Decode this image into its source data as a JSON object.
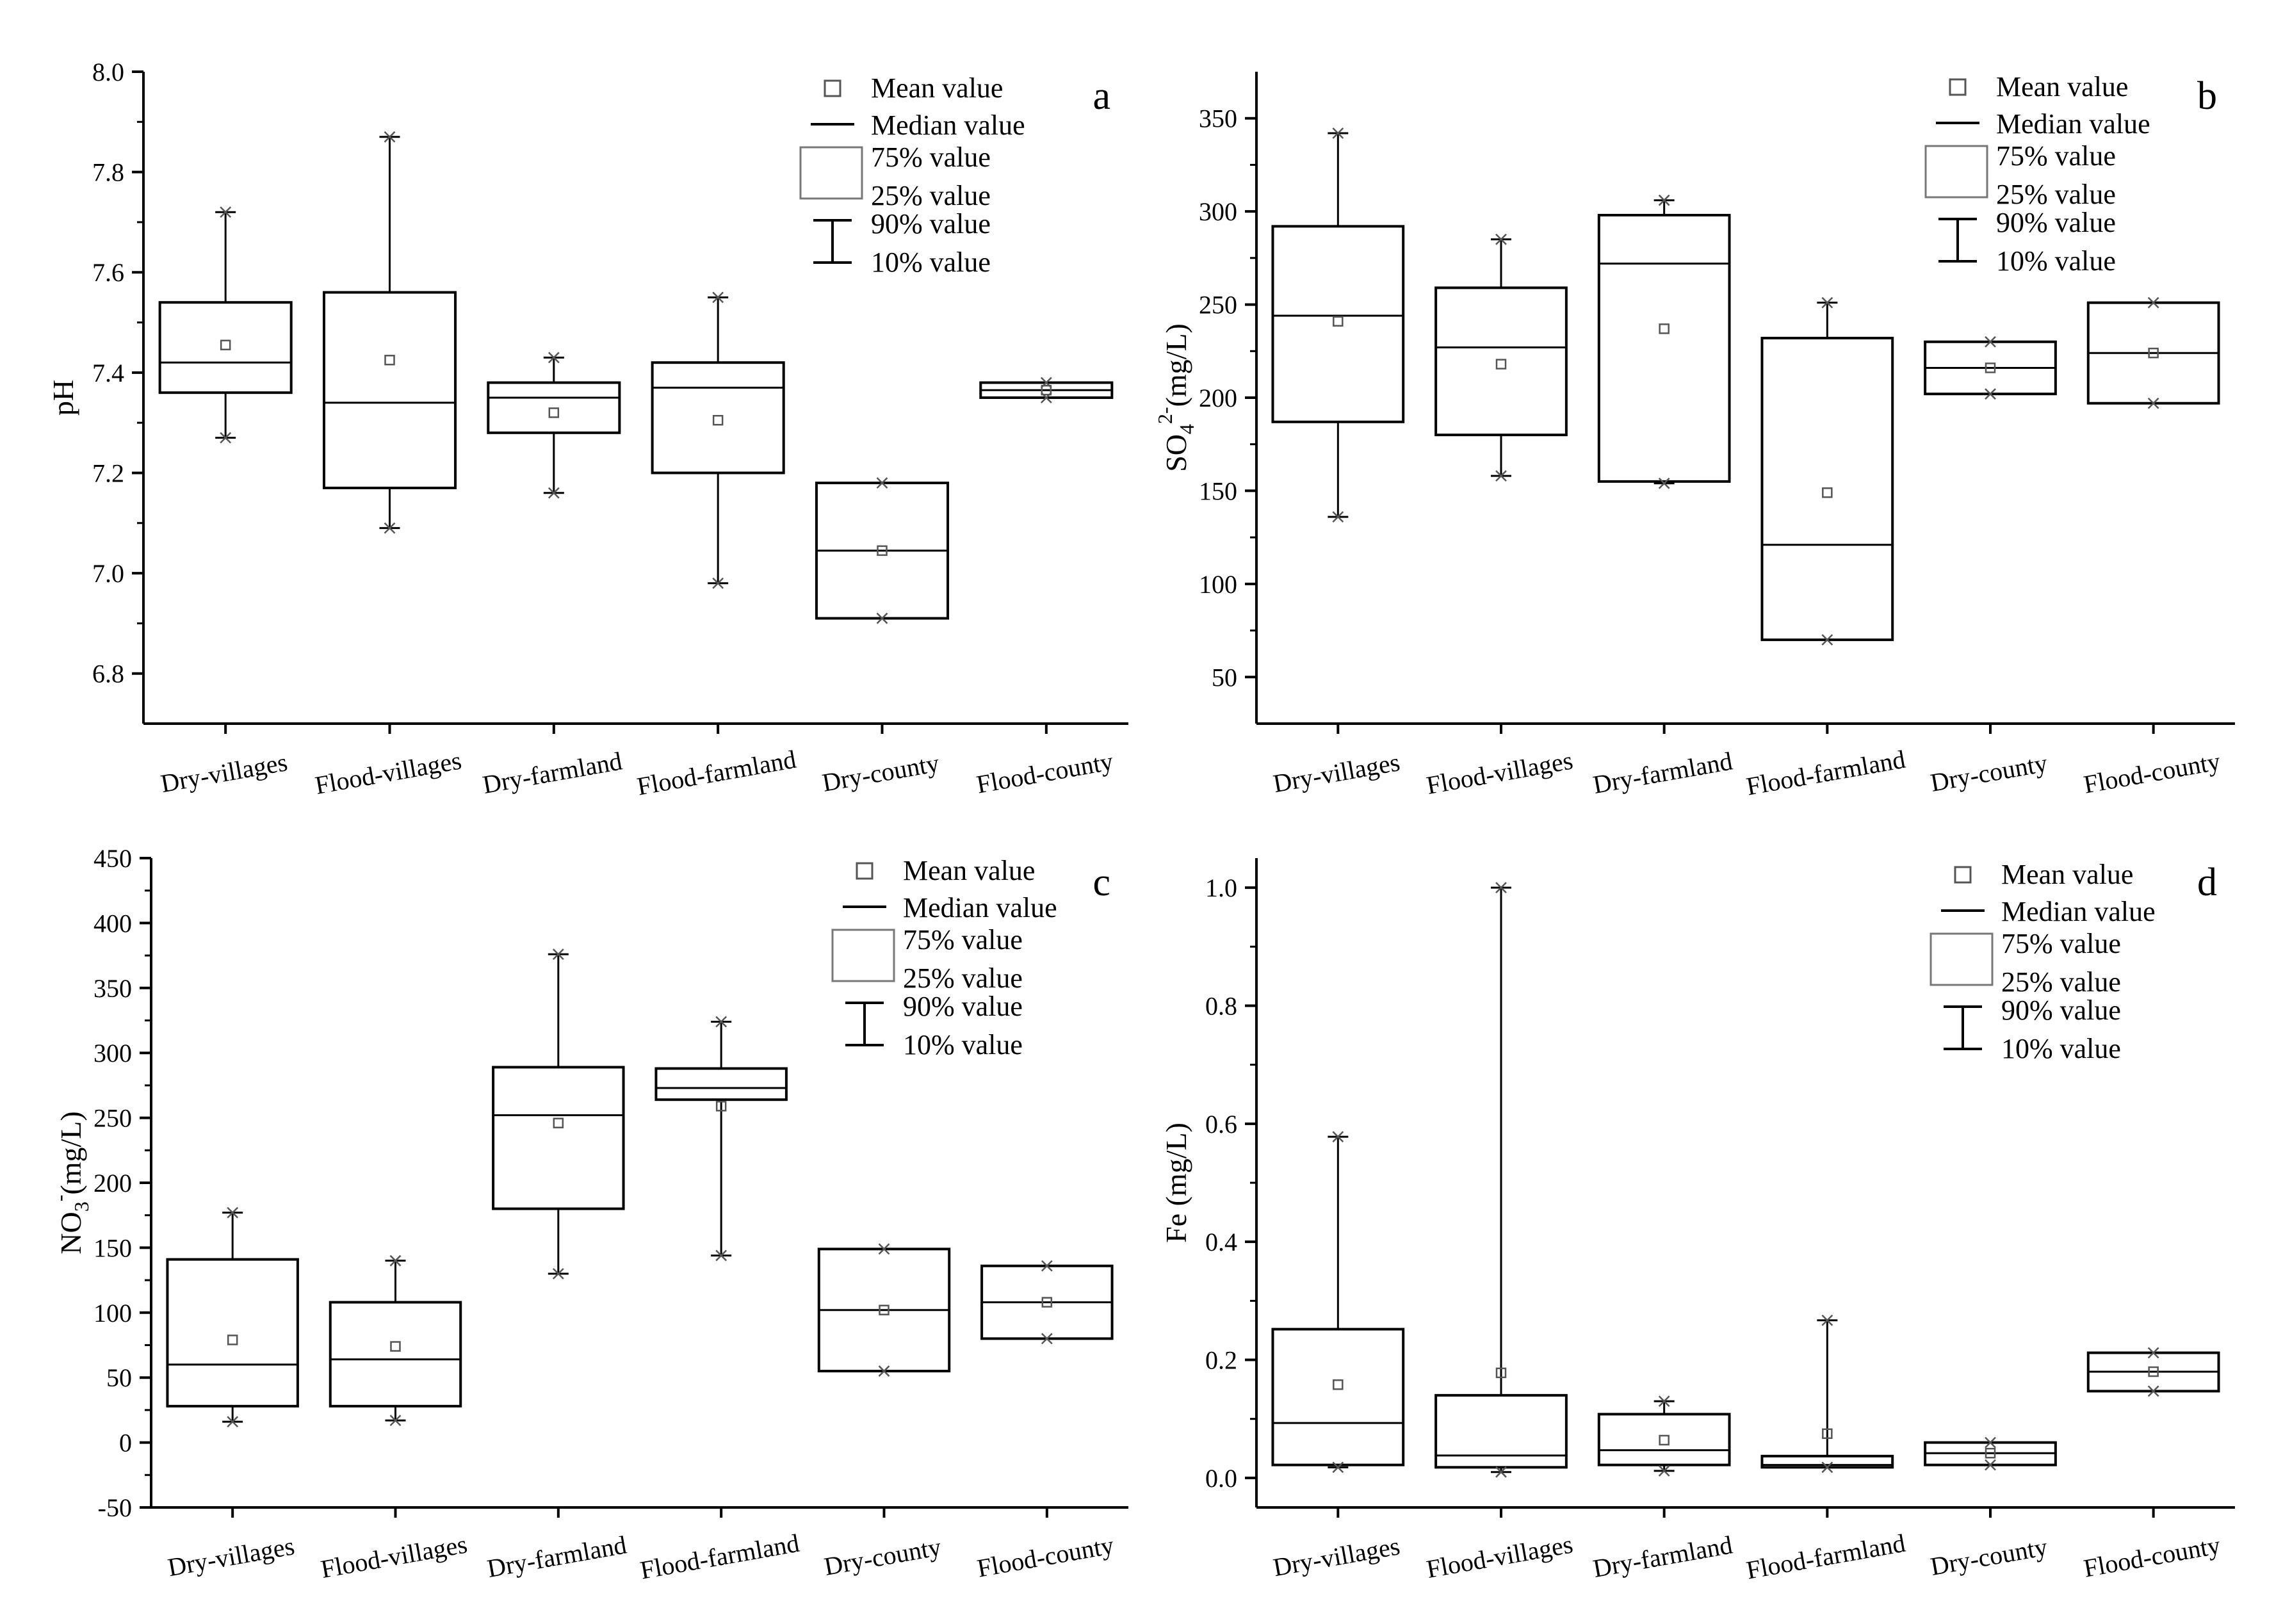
{
  "legend": {
    "mean": "Mean value",
    "median": "Median value",
    "p75": "75% value",
    "p25": "25% value",
    "p90": "90% value",
    "p10": "10% value"
  },
  "chart_data": [
    {
      "id": "a",
      "panel_label": "a",
      "type": "box",
      "ylabel": "pH",
      "ylim": [
        6.7,
        8.0
      ],
      "yticks": [
        6.8,
        7.0,
        7.2,
        7.4,
        7.6,
        7.8,
        8.0
      ],
      "tick_decimals": 1,
      "categories": [
        "Dry-villages",
        "Flood-villages",
        "Dry-farmland",
        "Flood-farmland",
        "Dry-county",
        "Flood-county"
      ],
      "boxes": [
        {
          "q1": 7.36,
          "median": 7.42,
          "q3": 7.54,
          "mean": 7.455,
          "p10": 7.27,
          "p90": 7.72,
          "whiskers": true
        },
        {
          "q1": 7.17,
          "median": 7.34,
          "q3": 7.56,
          "mean": 7.425,
          "p10": 7.09,
          "p90": 7.87,
          "whiskers": true
        },
        {
          "q1": 7.28,
          "median": 7.35,
          "q3": 7.38,
          "mean": 7.32,
          "p10": 7.16,
          "p90": 7.43,
          "whiskers": true
        },
        {
          "q1": 7.2,
          "median": 7.37,
          "q3": 7.42,
          "mean": 7.305,
          "p10": 6.98,
          "p90": 7.55,
          "whiskers": true
        },
        {
          "q1": 6.91,
          "median": 7.045,
          "q3": 7.18,
          "mean": 7.045,
          "p10": 6.91,
          "p90": 7.18,
          "whiskers": false
        },
        {
          "q1": 7.35,
          "median": 7.365,
          "q3": 7.38,
          "mean": 7.365,
          "p10": 7.35,
          "p90": 7.38,
          "whiskers": false
        }
      ]
    },
    {
      "id": "b",
      "panel_label": "b",
      "type": "box",
      "ylabel": "SO42-(mg/L)",
      "ylim": [
        25,
        375
      ],
      "yticks": [
        50,
        100,
        150,
        200,
        250,
        300,
        350
      ],
      "tick_decimals": 0,
      "categories": [
        "Dry-villages",
        "Flood-villages",
        "Dry-farmland",
        "Flood-farmland",
        "Dry-county",
        "Flood-county"
      ],
      "boxes": [
        {
          "q1": 187,
          "median": 244,
          "q3": 292,
          "mean": 241,
          "p10": 136,
          "p90": 342,
          "whiskers": true
        },
        {
          "q1": 180,
          "median": 227,
          "q3": 259,
          "mean": 218,
          "p10": 158,
          "p90": 285,
          "whiskers": true
        },
        {
          "q1": 155,
          "median": 272,
          "q3": 298,
          "mean": 237,
          "p10": 154,
          "p90": 306,
          "whiskers": true
        },
        {
          "q1": 70,
          "median": 121,
          "q3": 232,
          "mean": 149,
          "p10": 70,
          "p90": 251,
          "whiskers": true
        },
        {
          "q1": 202,
          "median": 216,
          "q3": 230,
          "mean": 216,
          "p10": 202,
          "p90": 230,
          "whiskers": false
        },
        {
          "q1": 197,
          "median": 224,
          "q3": 251,
          "mean": 224,
          "p10": 197,
          "p90": 251,
          "whiskers": false
        }
      ]
    },
    {
      "id": "c",
      "panel_label": "c",
      "type": "box",
      "ylabel": "NO3-(mg/L)",
      "ylim": [
        -50,
        450
      ],
      "yticks": [
        -50,
        0,
        50,
        100,
        150,
        200,
        250,
        300,
        350,
        400,
        450
      ],
      "tick_decimals": 0,
      "categories": [
        "Dry-villages",
        "Flood-villages",
        "Dry-farmland",
        "Flood-farmland",
        "Dry-county",
        "Flood-county"
      ],
      "boxes": [
        {
          "q1": 28,
          "median": 60,
          "q3": 141,
          "mean": 79,
          "p10": 16,
          "p90": 177,
          "whiskers": true
        },
        {
          "q1": 28,
          "median": 64,
          "q3": 108,
          "mean": 74,
          "p10": 17,
          "p90": 140,
          "whiskers": true
        },
        {
          "q1": 180,
          "median": 252,
          "q3": 289,
          "mean": 246,
          "p10": 130,
          "p90": 376,
          "whiskers": true
        },
        {
          "q1": 264,
          "median": 273,
          "q3": 288,
          "mean": 259,
          "p10": 144,
          "p90": 324,
          "whiskers": true
        },
        {
          "q1": 55,
          "median": 102,
          "q3": 149,
          "mean": 102,
          "p10": 55,
          "p90": 149,
          "whiskers": false
        },
        {
          "q1": 80,
          "median": 108,
          "q3": 136,
          "mean": 108,
          "p10": 80,
          "p90": 136,
          "whiskers": false
        }
      ]
    },
    {
      "id": "d",
      "panel_label": "d",
      "type": "box",
      "ylabel": "Fe (mg/L)",
      "ylim": [
        -0.05,
        1.05
      ],
      "yticks": [
        0.0,
        0.2,
        0.4,
        0.6,
        0.8,
        1.0
      ],
      "tick_decimals": 1,
      "categories": [
        "Dry-villages",
        "Flood-villages",
        "Dry-farmland",
        "Flood-farmland",
        "Dry-county",
        "Flood-county"
      ],
      "boxes": [
        {
          "q1": 0.022,
          "median": 0.093,
          "q3": 0.252,
          "mean": 0.158,
          "p10": 0.018,
          "p90": 0.578,
          "whiskers": true
        },
        {
          "q1": 0.018,
          "median": 0.038,
          "q3": 0.14,
          "mean": 0.178,
          "p10": 0.01,
          "p90": 1.0,
          "whiskers": true
        },
        {
          "q1": 0.022,
          "median": 0.047,
          "q3": 0.108,
          "mean": 0.064,
          "p10": 0.012,
          "p90": 0.13,
          "whiskers": true
        },
        {
          "q1": 0.018,
          "median": 0.022,
          "q3": 0.037,
          "mean": 0.075,
          "p10": 0.018,
          "p90": 0.267,
          "whiskers": true
        },
        {
          "q1": 0.022,
          "median": 0.042,
          "q3": 0.06,
          "mean": 0.042,
          "p10": 0.022,
          "p90": 0.06,
          "whiskers": false
        },
        {
          "q1": 0.147,
          "median": 0.18,
          "q3": 0.212,
          "mean": 0.18,
          "p10": 0.147,
          "p90": 0.212,
          "whiskers": false
        }
      ]
    }
  ]
}
